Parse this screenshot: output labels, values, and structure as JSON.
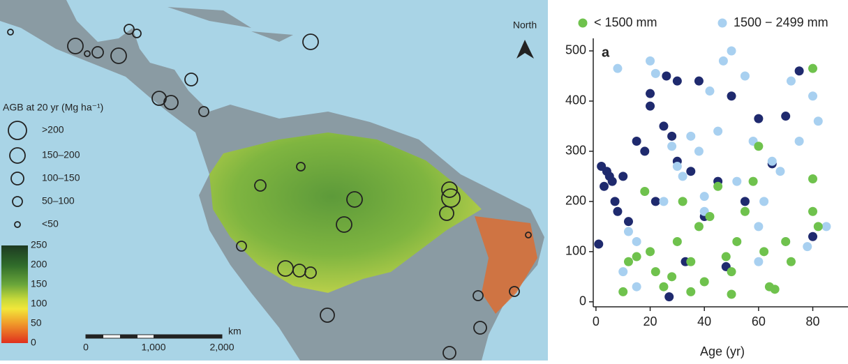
{
  "map": {
    "north": "North",
    "legend_title": "AGB at 20 yr (Mg ha⁻¹)",
    "size_classes": [
      ">200",
      "150–200",
      "100–150",
      "50–100",
      "<50"
    ],
    "colorbar_ticks": [
      250,
      200,
      150,
      100,
      50,
      0
    ],
    "scale_unit": "km",
    "scale_labels": [
      "0",
      "1,000",
      "2,000"
    ]
  },
  "chart_data": {
    "type": "scatter",
    "panel_label": "a",
    "x_label": "Age (yr)",
    "legend": "top",
    "xlim": [
      -1,
      93
    ],
    "ylim": [
      -10,
      525
    ],
    "xticks": [
      0,
      20,
      40,
      60,
      80
    ],
    "yticks": [
      0,
      100,
      200,
      300,
      400,
      500
    ],
    "series": [
      {
        "color": "#1f2a6e",
        "x": [
          1,
          2,
          3,
          4,
          5,
          6,
          7,
          8,
          10,
          12,
          15,
          18,
          20,
          20,
          22,
          25,
          26,
          28,
          30,
          30,
          35,
          38,
          40,
          45,
          50,
          55,
          60,
          65,
          70,
          75,
          80,
          48,
          27,
          33
        ],
        "values": [
          115,
          270,
          230,
          260,
          250,
          240,
          200,
          180,
          250,
          160,
          320,
          300,
          415,
          390,
          200,
          350,
          450,
          330,
          440,
          280,
          260,
          440,
          170,
          240,
          410,
          200,
          365,
          275,
          370,
          460,
          130,
          70,
          10,
          80
        ]
      },
      {
        "name": "1500 − 2499 mm",
        "color": "#a8d0f0",
        "x": [
          8,
          12,
          15,
          20,
          22,
          25,
          28,
          30,
          32,
          35,
          38,
          40,
          42,
          45,
          47,
          50,
          52,
          55,
          58,
          60,
          62,
          65,
          68,
          70,
          72,
          75,
          78,
          80,
          82,
          85,
          15,
          10,
          40,
          60
        ],
        "values": [
          465,
          140,
          120,
          480,
          455,
          200,
          310,
          270,
          250,
          330,
          300,
          210,
          420,
          340,
          480,
          500,
          240,
          450,
          320,
          150,
          200,
          280,
          260,
          120,
          440,
          320,
          110,
          410,
          360,
          150,
          30,
          60,
          180,
          80
        ]
      },
      {
        "name": "< 1500 mm",
        "color": "#6fc24d",
        "x": [
          10,
          12,
          15,
          18,
          20,
          22,
          25,
          28,
          30,
          32,
          35,
          38,
          40,
          42,
          45,
          48,
          50,
          52,
          55,
          58,
          60,
          62,
          64,
          66,
          70,
          72,
          80,
          80,
          80,
          82,
          35,
          50
        ],
        "values": [
          20,
          80,
          90,
          220,
          100,
          60,
          30,
          50,
          120,
          200,
          80,
          150,
          40,
          170,
          230,
          90,
          60,
          120,
          180,
          240,
          310,
          100,
          30,
          25,
          120,
          80,
          465,
          245,
          180,
          150,
          20,
          15
        ]
      }
    ]
  }
}
